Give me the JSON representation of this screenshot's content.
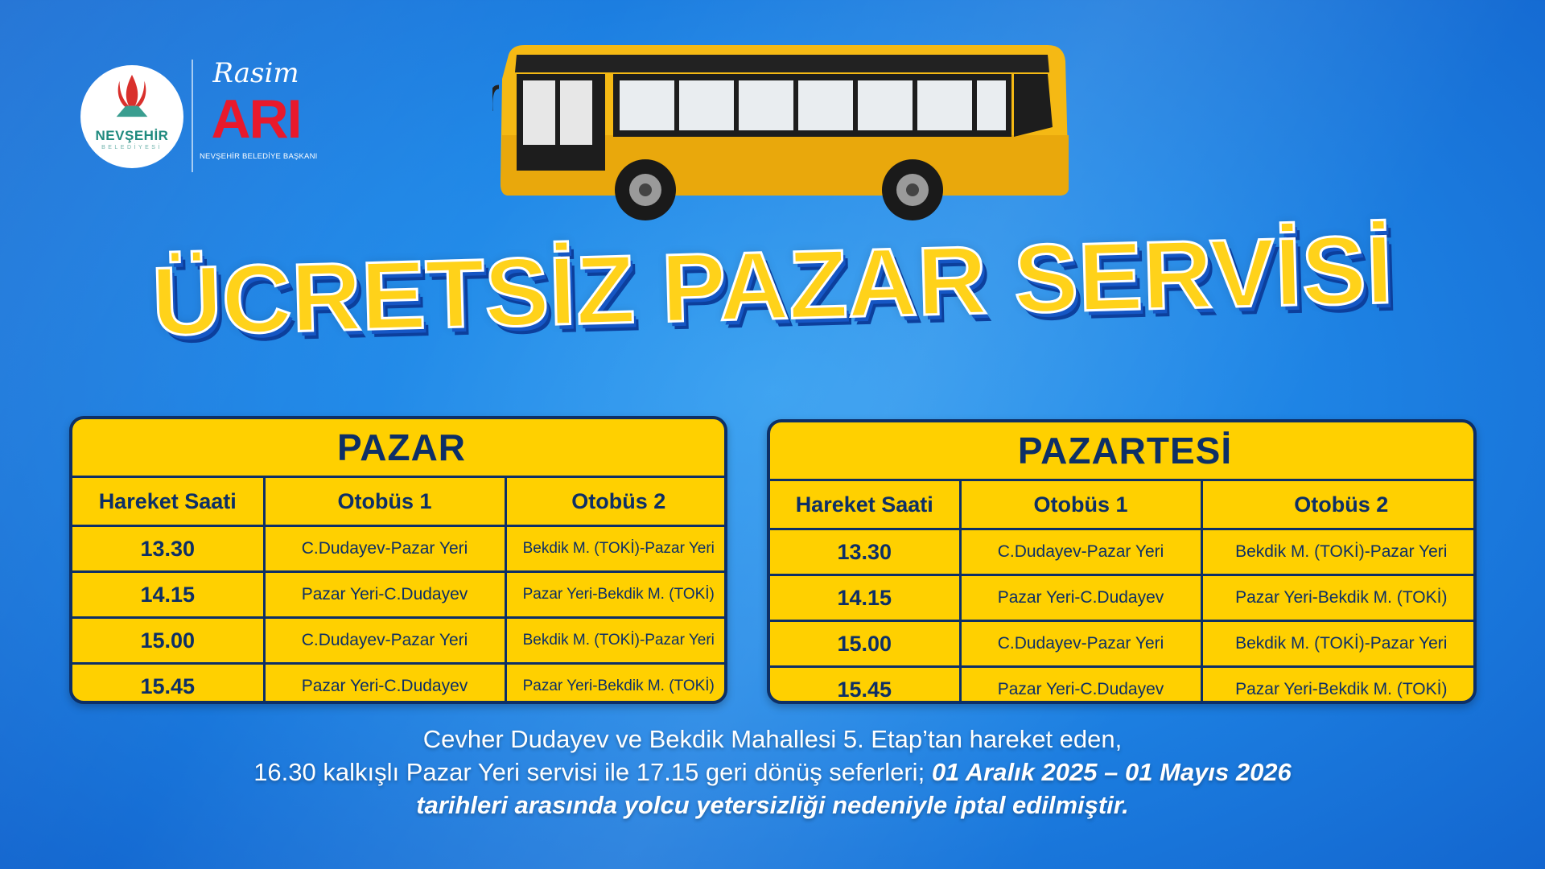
{
  "logo": {
    "name": "NEVŞEHİR",
    "subtitle": "BELEDİYESİ"
  },
  "mayor": {
    "first_name": "Rasim",
    "last_name": "ARI",
    "role": "NEVŞEHİR BELEDİYE BAŞKANI"
  },
  "title": "ÜCRETSİZ PAZAR SERVİSİ",
  "colors": {
    "background": "#1f86e6",
    "table_fill": "#ffd000",
    "table_text": "#0d2f66",
    "title": "#ffd21a"
  },
  "tables": [
    {
      "day": "PAZAR",
      "headers": [
        "Hareket Saati",
        "Otobüs 1",
        "Otobüs 2"
      ],
      "rows": [
        {
          "time": "13.30",
          "bus1": "C.Dudayev-Pazar Yeri",
          "bus2": "Bekdik M. (TOKİ)-Pazar Yeri"
        },
        {
          "time": "14.15",
          "bus1": "Pazar Yeri-C.Dudayev",
          "bus2": "Pazar Yeri-Bekdik M. (TOKİ)"
        },
        {
          "time": "15.00",
          "bus1": "C.Dudayev-Pazar Yeri",
          "bus2": "Bekdik M. (TOKİ)-Pazar Yeri"
        },
        {
          "time": "15.45",
          "bus1": "Pazar Yeri-C.Dudayev",
          "bus2": "Pazar Yeri-Bekdik M. (TOKİ)"
        }
      ]
    },
    {
      "day": "PAZARTESİ",
      "headers": [
        "Hareket Saati",
        "Otobüs 1",
        "Otobüs 2"
      ],
      "rows": [
        {
          "time": "13.30",
          "bus1": "C.Dudayev-Pazar Yeri",
          "bus2": "Bekdik M. (TOKİ)-Pazar Yeri"
        },
        {
          "time": "14.15",
          "bus1": "Pazar Yeri-C.Dudayev",
          "bus2": "Pazar Yeri-Bekdik M. (TOKİ)"
        },
        {
          "time": "15.00",
          "bus1": "C.Dudayev-Pazar Yeri",
          "bus2": "Bekdik M. (TOKİ)-Pazar Yeri"
        },
        {
          "time": "15.45",
          "bus1": "Pazar Yeri-C.Dudayev",
          "bus2": "Pazar Yeri-Bekdik M. (TOKİ)"
        }
      ]
    }
  ],
  "note": {
    "line1": "Cevher Dudayev ve Bekdik Mahallesi 5. Etap’tan hareket eden,",
    "line2": "16.30 kalkışlı Pazar Yeri servisi ile 17.15 geri dönüş seferleri;",
    "line2_bold": "01 Aralık 2025 – 01 Mayıs 2026",
    "line3_bold": "tarihleri arasında yolcu yetersizliği nedeniyle iptal edilmiştir."
  }
}
